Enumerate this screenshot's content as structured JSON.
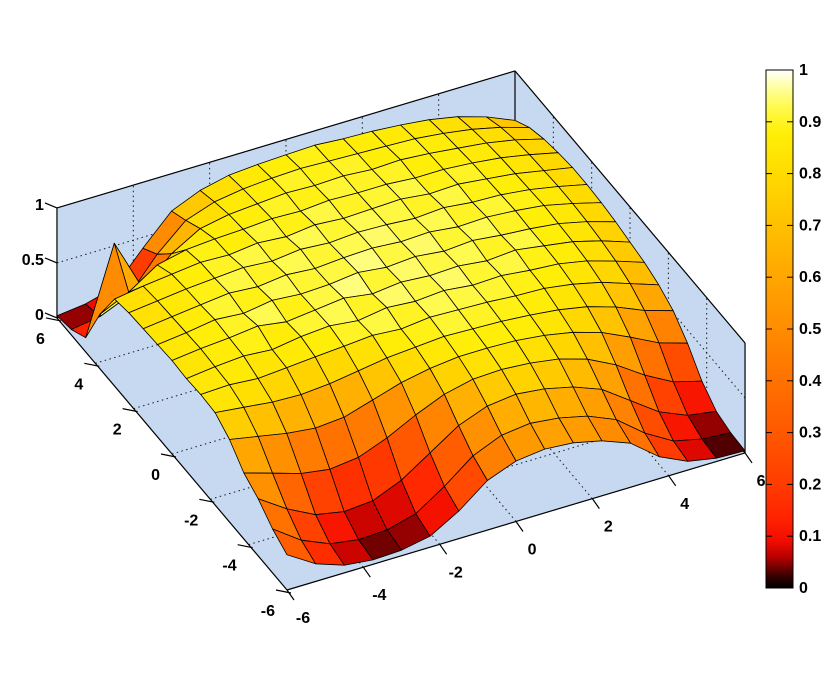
{
  "figure": {
    "background": "#ffffff"
  },
  "axes": {
    "wall_color": "#c6d9f1",
    "grid_color": "#1a1a1a",
    "grid_style": "dotted",
    "box_color": "#000000",
    "mesh_line_color": "#000000",
    "xlim": [
      -6,
      6
    ],
    "ylim": [
      -6,
      6
    ],
    "zlim": [
      0,
      1
    ],
    "x_ticks": [
      -6,
      -4,
      -2,
      0,
      2,
      4,
      6
    ],
    "y_ticks": [
      -6,
      -4,
      -2,
      0,
      2,
      4,
      6
    ],
    "z_ticks": [
      0,
      0.5,
      1
    ],
    "x_tick_labels": [
      "-6",
      "-4",
      "-2",
      "0",
      "2",
      "4",
      "6"
    ],
    "y_tick_labels": [
      "-6",
      "-4",
      "-2",
      "0",
      "2",
      "4",
      "6"
    ],
    "z_tick_labels": [
      "0",
      "0.5",
      "1"
    ]
  },
  "colorbar": {
    "min": 0,
    "max": 1,
    "tick_values": [
      0,
      0.1,
      0.2,
      0.3,
      0.4,
      0.5,
      0.6,
      0.7,
      0.8,
      0.9,
      1
    ],
    "tick_labels": [
      "0",
      "0.1",
      "0.2",
      "0.3",
      "0.4",
      "0.5",
      "0.6",
      "0.7",
      "0.8",
      "0.9",
      "1"
    ]
  },
  "colormap": {
    "name": "hot-style-black-red-yellow-white",
    "stops": [
      [
        0.0,
        "#000000"
      ],
      [
        0.02,
        "#2e0000"
      ],
      [
        0.04,
        "#720000"
      ],
      [
        0.06,
        "#b80000"
      ],
      [
        0.09,
        "#f00c00"
      ],
      [
        0.13,
        "#ff2000"
      ],
      [
        0.2,
        "#ff3c00"
      ],
      [
        0.3,
        "#ff5800"
      ],
      [
        0.4,
        "#ff7200"
      ],
      [
        0.5,
        "#ff8c00"
      ],
      [
        0.6,
        "#ffa600"
      ],
      [
        0.7,
        "#ffc000"
      ],
      [
        0.8,
        "#ffdb00"
      ],
      [
        0.88,
        "#ffef08"
      ],
      [
        0.93,
        "#fffa50"
      ],
      [
        0.97,
        "#ffffa8"
      ],
      [
        1.0,
        "#ffffff"
      ]
    ]
  },
  "chart_data": {
    "type": "surface",
    "title": "",
    "xlabel": "",
    "ylabel": "",
    "zlabel": "",
    "view": "3d-oblique, MATLAB default (az -37.5, el 30)",
    "shading": "flat-with-black-mesh",
    "x": [
      -6,
      -5.25,
      -4.5,
      -3.75,
      -3,
      -2.25,
      -1.5,
      -0.75,
      0,
      0.75,
      1.5,
      2.25,
      3,
      3.75,
      4.5,
      5.25,
      6
    ],
    "y": [
      -6,
      -5.25,
      -4.5,
      -3.75,
      -3,
      -2.25,
      -1.5,
      -0.75,
      0,
      0.75,
      1.5,
      2.25,
      3,
      3.75,
      4.5,
      5.25,
      6
    ],
    "z_row_axis": "rows are y from -6 to 6, columns are x from -6 to 6",
    "z": [
      [
        0.32,
        0.16,
        0.07,
        0.04,
        0.05,
        0.1,
        0.25,
        0.45,
        0.55,
        0.58,
        0.56,
        0.5,
        0.4,
        0.2,
        0.08,
        0.03,
        0.02
      ],
      [
        0.4,
        0.22,
        0.11,
        0.07,
        0.08,
        0.15,
        0.32,
        0.52,
        0.63,
        0.66,
        0.63,
        0.57,
        0.46,
        0.26,
        0.11,
        0.05,
        0.03
      ],
      [
        0.52,
        0.35,
        0.22,
        0.17,
        0.19,
        0.3,
        0.47,
        0.64,
        0.74,
        0.77,
        0.74,
        0.68,
        0.58,
        0.4,
        0.22,
        0.11,
        0.07
      ],
      [
        0.6,
        0.52,
        0.44,
        0.4,
        0.43,
        0.53,
        0.66,
        0.77,
        0.83,
        0.84,
        0.82,
        0.78,
        0.7,
        0.57,
        0.4,
        0.26,
        0.19
      ],
      [
        0.75,
        0.7,
        0.65,
        0.62,
        0.64,
        0.72,
        0.8,
        0.85,
        0.88,
        0.88,
        0.87,
        0.84,
        0.79,
        0.71,
        0.59,
        0.46,
        0.38
      ],
      [
        0.84,
        0.81,
        0.78,
        0.77,
        0.79,
        0.83,
        0.87,
        0.89,
        0.91,
        0.9,
        0.89,
        0.87,
        0.84,
        0.79,
        0.71,
        0.6,
        0.52
      ],
      [
        0.85,
        0.86,
        0.84,
        0.86,
        0.88,
        0.9,
        0.92,
        0.9,
        0.93,
        0.92,
        0.91,
        0.89,
        0.88,
        0.84,
        0.78,
        0.69,
        0.6
      ],
      [
        0.84,
        0.87,
        0.89,
        0.87,
        0.91,
        0.93,
        0.9,
        0.94,
        0.92,
        0.94,
        0.91,
        0.92,
        0.89,
        0.87,
        0.82,
        0.74,
        0.65
      ],
      [
        0.85,
        0.88,
        0.9,
        0.93,
        0.89,
        0.92,
        0.95,
        0.91,
        0.94,
        0.92,
        0.93,
        0.9,
        0.92,
        0.88,
        0.84,
        0.77,
        0.68
      ],
      [
        0.84,
        0.87,
        0.91,
        0.89,
        0.93,
        0.91,
        0.92,
        0.95,
        0.92,
        0.94,
        0.91,
        0.93,
        0.9,
        0.88,
        0.85,
        0.79,
        0.71
      ],
      [
        0.83,
        0.86,
        0.89,
        0.92,
        0.9,
        0.93,
        0.91,
        0.93,
        0.94,
        0.92,
        0.93,
        0.9,
        0.91,
        0.89,
        0.86,
        0.8,
        0.73
      ],
      [
        0.82,
        0.85,
        0.88,
        0.9,
        0.92,
        0.9,
        0.93,
        0.91,
        0.93,
        0.92,
        0.9,
        0.92,
        0.89,
        0.88,
        0.85,
        0.8,
        0.74
      ],
      [
        0.79,
        0.83,
        0.86,
        0.89,
        0.88,
        0.91,
        0.89,
        0.92,
        0.9,
        0.91,
        0.92,
        0.89,
        0.9,
        0.87,
        0.84,
        0.79,
        0.74
      ],
      [
        0.5,
        0.62,
        0.79,
        0.85,
        0.87,
        0.88,
        0.9,
        0.89,
        0.91,
        0.9,
        0.9,
        0.88,
        0.88,
        0.86,
        0.83,
        0.78,
        0.72
      ],
      [
        0.13,
        0.91,
        0.42,
        0.66,
        0.81,
        0.86,
        0.88,
        0.9,
        0.89,
        0.9,
        0.88,
        0.89,
        0.87,
        0.84,
        0.81,
        0.76,
        0.69
      ],
      [
        0.05,
        0.09,
        0.2,
        0.5,
        0.73,
        0.82,
        0.86,
        0.88,
        0.89,
        0.88,
        0.87,
        0.86,
        0.85,
        0.82,
        0.78,
        0.72,
        0.64
      ],
      [
        0.02,
        0.05,
        0.12,
        0.4,
        0.66,
        0.77,
        0.83,
        0.85,
        0.86,
        0.87,
        0.85,
        0.84,
        0.82,
        0.79,
        0.74,
        0.66,
        0.55
      ]
    ]
  }
}
